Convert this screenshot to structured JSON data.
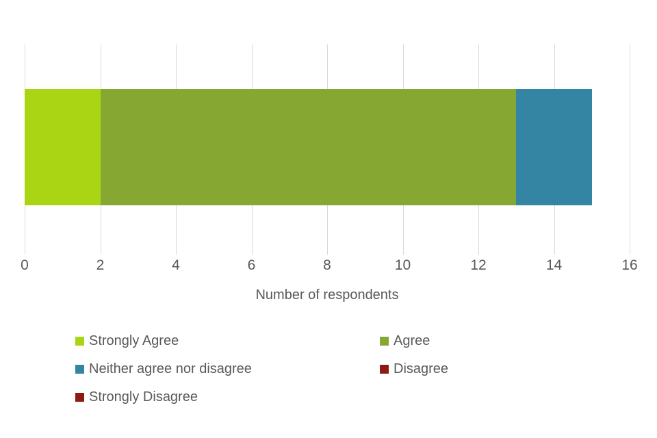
{
  "chart_data": {
    "type": "bar",
    "orientation": "horizontal",
    "stacked": true,
    "title": "",
    "xlabel": "Number of respondents",
    "ylabel": "",
    "xlim": [
      0,
      16
    ],
    "xticks": [
      0,
      2,
      4,
      6,
      8,
      10,
      12,
      14,
      16
    ],
    "grid": true,
    "legend_position": "bottom",
    "series": [
      {
        "name": "Strongly Agree",
        "value": 2,
        "color": "#a9d514"
      },
      {
        "name": "Agree",
        "value": 11,
        "color": "#87a733"
      },
      {
        "name": "Neither agree nor disagree",
        "value": 2,
        "color": "#3385a3"
      },
      {
        "name": "Disagree",
        "value": 0,
        "color": "#8e1b13"
      },
      {
        "name": "Strongly Disagree",
        "value": 0,
        "color": "#8e1b13"
      }
    ]
  },
  "colors": {
    "text": "#595959",
    "gridline": "#d9d9d9",
    "background": "#ffffff"
  }
}
